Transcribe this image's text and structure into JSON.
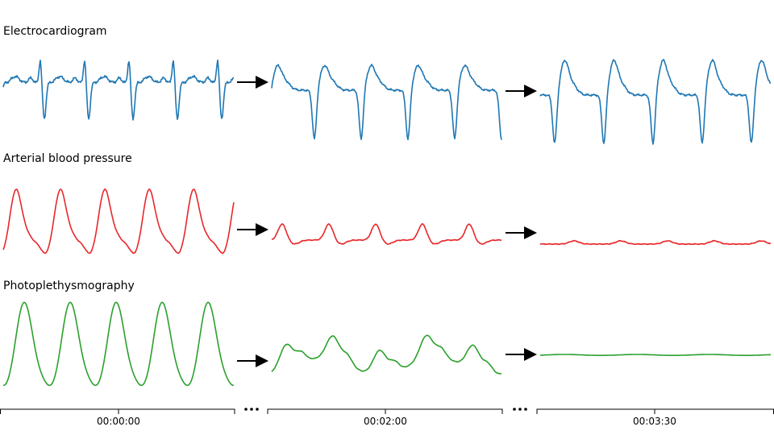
{
  "signals": [
    {
      "label": "Electrocardiogram"
    },
    {
      "label": "Arterial blood pressure"
    },
    {
      "label": "Photoplethysmography"
    }
  ],
  "timeline": {
    "times": [
      "00:00:00",
      "00:02:00",
      "00:03:30"
    ]
  }
}
